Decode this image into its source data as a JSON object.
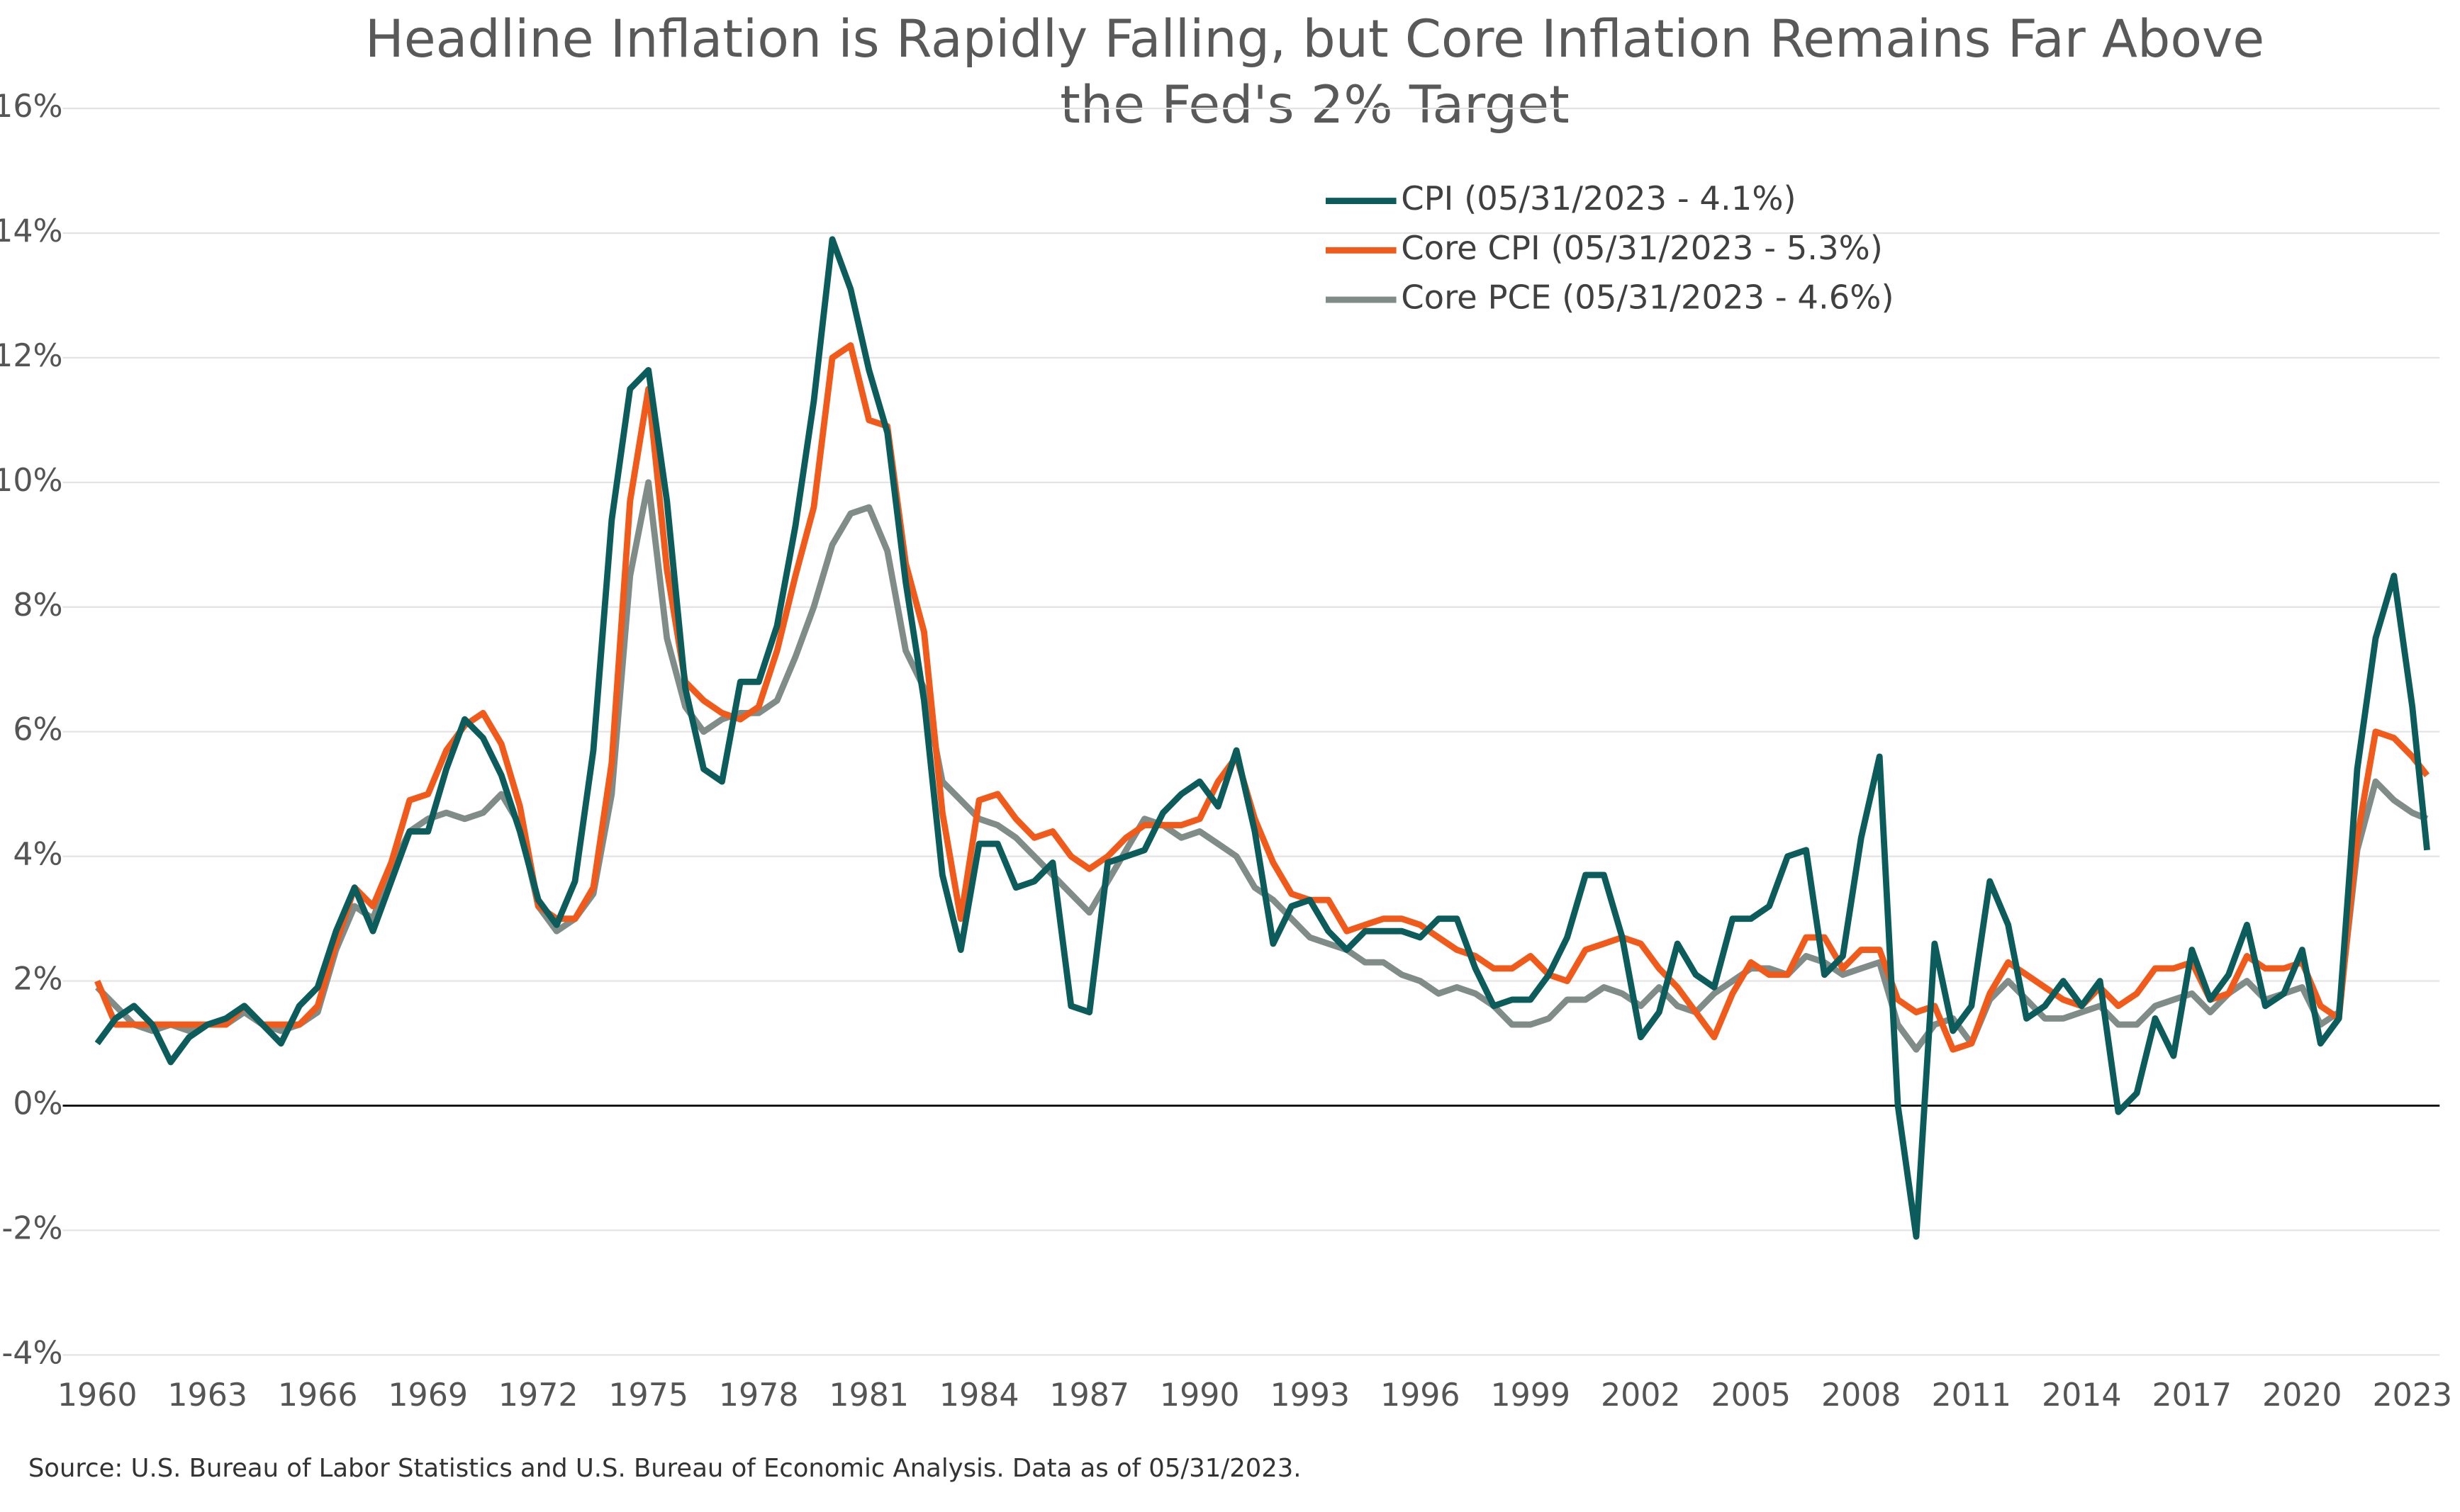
{
  "chart_data": {
    "type": "line",
    "title": [
      "Headline Inflation is Rapidly Falling, but Core Inflation Remains Far Above",
      "the Fed's 2% Target"
    ],
    "source": "Source: U.S. Bureau of Labor Statistics and U.S. Bureau of Economic Analysis. Data as of 05/31/2023.",
    "x": [
      1960,
      1960.5,
      1961,
      1961.5,
      1962,
      1962.5,
      1963,
      1963.5,
      1964,
      1964.5,
      1965,
      1965.5,
      1966,
      1966.5,
      1967,
      1967.5,
      1968,
      1968.5,
      1969,
      1969.5,
      1970,
      1970.5,
      1971,
      1971.5,
      1972,
      1972.5,
      1973,
      1973.5,
      1974,
      1974.5,
      1975,
      1975.5,
      1976,
      1976.5,
      1977,
      1977.5,
      1978,
      1978.5,
      1979,
      1979.5,
      1980,
      1980.5,
      1981,
      1981.5,
      1982,
      1982.5,
      1983,
      1983.5,
      1984,
      1984.5,
      1985,
      1985.5,
      1986,
      1986.5,
      1987,
      1987.5,
      1988,
      1988.5,
      1989,
      1989.5,
      1990,
      1990.5,
      1991,
      1991.5,
      1992,
      1992.5,
      1993,
      1993.5,
      1994,
      1994.5,
      1995,
      1995.5,
      1996,
      1996.5,
      1997,
      1997.5,
      1998,
      1998.5,
      1999,
      1999.5,
      2000,
      2000.5,
      2001,
      2001.5,
      2002,
      2002.5,
      2003,
      2003.5,
      2004,
      2004.5,
      2005,
      2005.5,
      2006,
      2006.5,
      2007,
      2007.5,
      2008,
      2008.5,
      2009,
      2009.5,
      2010,
      2010.5,
      2011,
      2011.5,
      2012,
      2012.5,
      2013,
      2013.5,
      2014,
      2014.5,
      2015,
      2015.5,
      2016,
      2016.5,
      2017,
      2017.5,
      2018,
      2018.5,
      2019,
      2019.5,
      2020,
      2020.5,
      2021,
      2021.5,
      2022,
      2022.5,
      2023,
      2023.4
    ],
    "series": [
      {
        "name": "CPI (05/31/2023 - 4.1%)",
        "color": "#0d5c5c",
        "values": [
          1.0,
          1.4,
          1.6,
          1.3,
          0.7,
          1.1,
          1.3,
          1.4,
          1.6,
          1.3,
          1.0,
          1.6,
          1.9,
          2.8,
          3.5,
          2.8,
          3.6,
          4.4,
          4.4,
          5.4,
          6.2,
          5.9,
          5.3,
          4.4,
          3.3,
          2.9,
          3.6,
          5.7,
          9.4,
          11.5,
          11.8,
          9.7,
          6.7,
          5.4,
          5.2,
          6.8,
          6.8,
          7.7,
          9.3,
          11.3,
          13.9,
          13.1,
          11.8,
          10.8,
          8.4,
          6.5,
          3.7,
          2.5,
          4.2,
          4.2,
          3.5,
          3.6,
          3.9,
          1.6,
          1.5,
          3.9,
          4.0,
          4.1,
          4.7,
          5.0,
          5.2,
          4.8,
          5.7,
          4.4,
          2.6,
          3.2,
          3.3,
          2.8,
          2.5,
          2.8,
          2.8,
          2.8,
          2.7,
          3.0,
          3.0,
          2.2,
          1.6,
          1.7,
          1.7,
          2.1,
          2.7,
          3.7,
          3.7,
          2.7,
          1.1,
          1.5,
          2.6,
          2.1,
          1.9,
          3.0,
          3.0,
          3.2,
          4.0,
          4.1,
          2.1,
          2.4,
          4.3,
          5.6,
          0.0,
          -2.1,
          2.6,
          1.2,
          1.6,
          3.6,
          2.9,
          1.4,
          1.6,
          2.0,
          1.6,
          2.0,
          -0.1,
          0.2,
          1.4,
          0.8,
          2.5,
          1.7,
          2.1,
          2.9,
          1.6,
          1.8,
          2.5,
          1.0,
          1.4,
          5.4,
          7.5,
          8.5,
          6.4,
          4.1
        ]
      },
      {
        "name": "Core CPI (05/31/2023 - 5.3%)",
        "color": "#f05a1a",
        "values": [
          2.0,
          1.3,
          1.3,
          1.3,
          1.3,
          1.3,
          1.3,
          1.3,
          1.6,
          1.3,
          1.3,
          1.3,
          1.6,
          2.6,
          3.5,
          3.2,
          3.9,
          4.9,
          5.0,
          5.7,
          6.1,
          6.3,
          5.8,
          4.8,
          3.2,
          3.0,
          3.0,
          3.5,
          5.5,
          9.7,
          11.5,
          8.6,
          6.8,
          6.5,
          6.3,
          6.2,
          6.4,
          7.3,
          8.5,
          9.6,
          12.0,
          12.2,
          11.0,
          10.9,
          8.7,
          7.6,
          4.7,
          3.0,
          4.9,
          5.0,
          4.6,
          4.3,
          4.4,
          4.0,
          3.8,
          4.0,
          4.3,
          4.5,
          4.5,
          4.5,
          4.6,
          5.2,
          5.6,
          4.6,
          3.9,
          3.4,
          3.3,
          3.3,
          2.8,
          2.9,
          3.0,
          3.0,
          2.9,
          2.7,
          2.5,
          2.4,
          2.2,
          2.2,
          2.4,
          2.1,
          2.0,
          2.5,
          2.6,
          2.7,
          2.6,
          2.2,
          1.9,
          1.5,
          1.1,
          1.8,
          2.3,
          2.1,
          2.1,
          2.7,
          2.7,
          2.2,
          2.5,
          2.5,
          1.7,
          1.5,
          1.6,
          0.9,
          1.0,
          1.8,
          2.3,
          2.1,
          1.9,
          1.7,
          1.6,
          1.9,
          1.6,
          1.8,
          2.2,
          2.2,
          2.3,
          1.7,
          1.8,
          2.4,
          2.2,
          2.2,
          2.3,
          1.6,
          1.4,
          4.3,
          6.0,
          5.9,
          5.6,
          5.3
        ]
      },
      {
        "name": "Core PCE (05/31/2023 - 4.6%)",
        "color": "#7f8c87",
        "values": [
          1.9,
          1.6,
          1.3,
          1.2,
          1.3,
          1.2,
          1.3,
          1.3,
          1.5,
          1.3,
          1.2,
          1.3,
          1.5,
          2.5,
          3.2,
          3.0,
          3.8,
          4.4,
          4.6,
          4.7,
          4.6,
          4.7,
          5.0,
          4.5,
          3.2,
          2.8,
          3.0,
          3.4,
          5.0,
          8.5,
          10.0,
          7.5,
          6.4,
          6.0,
          6.2,
          6.3,
          6.3,
          6.5,
          7.2,
          8.0,
          9.0,
          9.5,
          9.6,
          8.9,
          7.3,
          6.7,
          5.2,
          4.9,
          4.6,
          4.5,
          4.3,
          4.0,
          3.7,
          3.4,
          3.1,
          3.6,
          4.1,
          4.6,
          4.5,
          4.3,
          4.4,
          4.2,
          4.0,
          3.5,
          3.3,
          3.0,
          2.7,
          2.6,
          2.5,
          2.3,
          2.3,
          2.1,
          2.0,
          1.8,
          1.9,
          1.8,
          1.6,
          1.3,
          1.3,
          1.4,
          1.7,
          1.7,
          1.9,
          1.8,
          1.6,
          1.9,
          1.6,
          1.5,
          1.8,
          2.0,
          2.2,
          2.2,
          2.1,
          2.4,
          2.3,
          2.1,
          2.2,
          2.3,
          1.3,
          0.9,
          1.3,
          1.4,
          1.0,
          1.7,
          2.0,
          1.7,
          1.4,
          1.4,
          1.5,
          1.6,
          1.3,
          1.3,
          1.6,
          1.7,
          1.8,
          1.5,
          1.8,
          2.0,
          1.7,
          1.8,
          1.9,
          1.3,
          1.5,
          4.1,
          5.2,
          4.9,
          4.7,
          4.6
        ]
      }
    ],
    "xlim": [
      1960,
      2023.4
    ],
    "xticks": [
      1960,
      1963,
      1966,
      1969,
      1972,
      1975,
      1978,
      1981,
      1984,
      1987,
      1990,
      1993,
      1996,
      1999,
      2002,
      2005,
      2008,
      2011,
      2014,
      2017,
      2020,
      2023
    ],
    "ylim": [
      -4,
      16
    ],
    "yticks": [
      {
        "value": -4,
        "label": "-4%"
      },
      {
        "value": -2,
        "label": "-2%"
      },
      {
        "value": 0,
        "label": "0%"
      },
      {
        "value": 2,
        "label": "2%"
      },
      {
        "value": 4,
        "label": "4%"
      },
      {
        "value": 6,
        "label": "6%"
      },
      {
        "value": 8,
        "label": "8%"
      },
      {
        "value": 10,
        "label": "10%"
      },
      {
        "value": 12,
        "label": "12%"
      },
      {
        "value": 14,
        "label": "14%"
      },
      {
        "value": 16,
        "label": "16%"
      }
    ],
    "grid": true
  }
}
